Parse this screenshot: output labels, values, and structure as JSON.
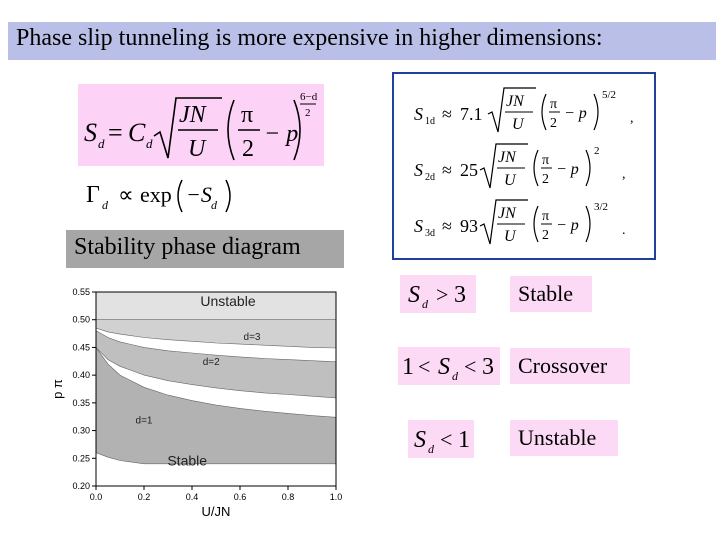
{
  "title": "Phase slip tunneling is more expensive in higher dimensions:",
  "stability_label": "Stability phase diagram",
  "formula": {
    "lhs": "S",
    "sub": "d",
    "eq": "=",
    "coef": "C",
    "num_inner": "JN",
    "den_inner": "U",
    "pi": "π",
    "two": "2",
    "minus_p": "− p",
    "exp_num": "6−d",
    "exp_den": "2"
  },
  "gamma": {
    "lhs": "Γ",
    "sub": "d",
    "prop": "∝",
    "exp": "exp",
    "arg": "−S",
    "argsub": "d"
  },
  "actions": [
    {
      "sub": "1d",
      "coef": "7.1",
      "power": "5/2",
      "trail": ","
    },
    {
      "sub": "2d",
      "coef": "25",
      "power": "2",
      "trail": ","
    },
    {
      "sub": "3d",
      "coef": "93",
      "power": "3/2",
      "trail": "."
    }
  ],
  "criteria": [
    {
      "condition": "S_d > 3",
      "label": "Stable"
    },
    {
      "condition": "1 < S_d < 3",
      "label": "Crossover"
    },
    {
      "condition": "S_d < 1",
      "label": "Unstable"
    }
  ],
  "chart_data": {
    "type": "area",
    "xlabel": "U/JN",
    "ylabel": "p π",
    "xlim": [
      0.0,
      1.0
    ],
    "ylim": [
      0.2,
      0.55
    ],
    "x_ticks": [
      "0.0",
      "0.2",
      "0.4",
      "0.6",
      "0.8",
      "1.0"
    ],
    "y_ticks": [
      "0.20",
      "0.25",
      "0.30",
      "0.35",
      "0.40",
      "0.45",
      "0.50",
      "0.55"
    ],
    "region_labels": [
      "Unstable",
      "d=3",
      "d=2",
      "d=1",
      "Stable"
    ],
    "region_label_positions": [
      [
        0.55,
        0.525
      ],
      [
        0.65,
        0.463
      ],
      [
        0.48,
        0.418
      ],
      [
        0.2,
        0.313
      ],
      [
        0.38,
        0.237
      ]
    ],
    "series": [
      {
        "name": "d=3",
        "x": [
          0.0,
          0.05,
          0.1,
          0.2,
          0.3,
          0.4,
          0.5,
          0.6,
          0.7,
          0.8,
          0.9,
          1.0
        ],
        "upper": [
          0.5,
          0.5,
          0.5,
          0.5,
          0.5,
          0.5,
          0.5,
          0.5,
          0.5,
          0.5,
          0.5,
          0.5
        ],
        "lower": [
          0.485,
          0.478,
          0.474,
          0.468,
          0.464,
          0.461,
          0.458,
          0.456,
          0.454,
          0.452,
          0.45,
          0.449
        ]
      },
      {
        "name": "d=2",
        "x": [
          0.0,
          0.05,
          0.1,
          0.2,
          0.3,
          0.4,
          0.5,
          0.6,
          0.7,
          0.8,
          0.9,
          1.0
        ],
        "upper": [
          0.48,
          0.468,
          0.46,
          0.45,
          0.444,
          0.44,
          0.436,
          0.433,
          0.43,
          0.428,
          0.426,
          0.424
        ],
        "lower": [
          0.45,
          0.428,
          0.416,
          0.4,
          0.39,
          0.383,
          0.377,
          0.372,
          0.368,
          0.365,
          0.362,
          0.359
        ]
      },
      {
        "name": "d=1",
        "x": [
          0.0,
          0.05,
          0.1,
          0.2,
          0.3,
          0.4,
          0.5,
          0.6,
          0.7,
          0.8,
          0.9,
          1.0
        ],
        "upper": [
          0.45,
          0.42,
          0.4,
          0.378,
          0.364,
          0.354,
          0.346,
          0.34,
          0.335,
          0.331,
          0.327,
          0.324
        ],
        "lower": [
          0.26,
          0.252,
          0.246,
          0.24,
          0.24,
          0.24,
          0.24,
          0.24,
          0.24,
          0.24,
          0.24,
          0.24
        ]
      }
    ]
  }
}
